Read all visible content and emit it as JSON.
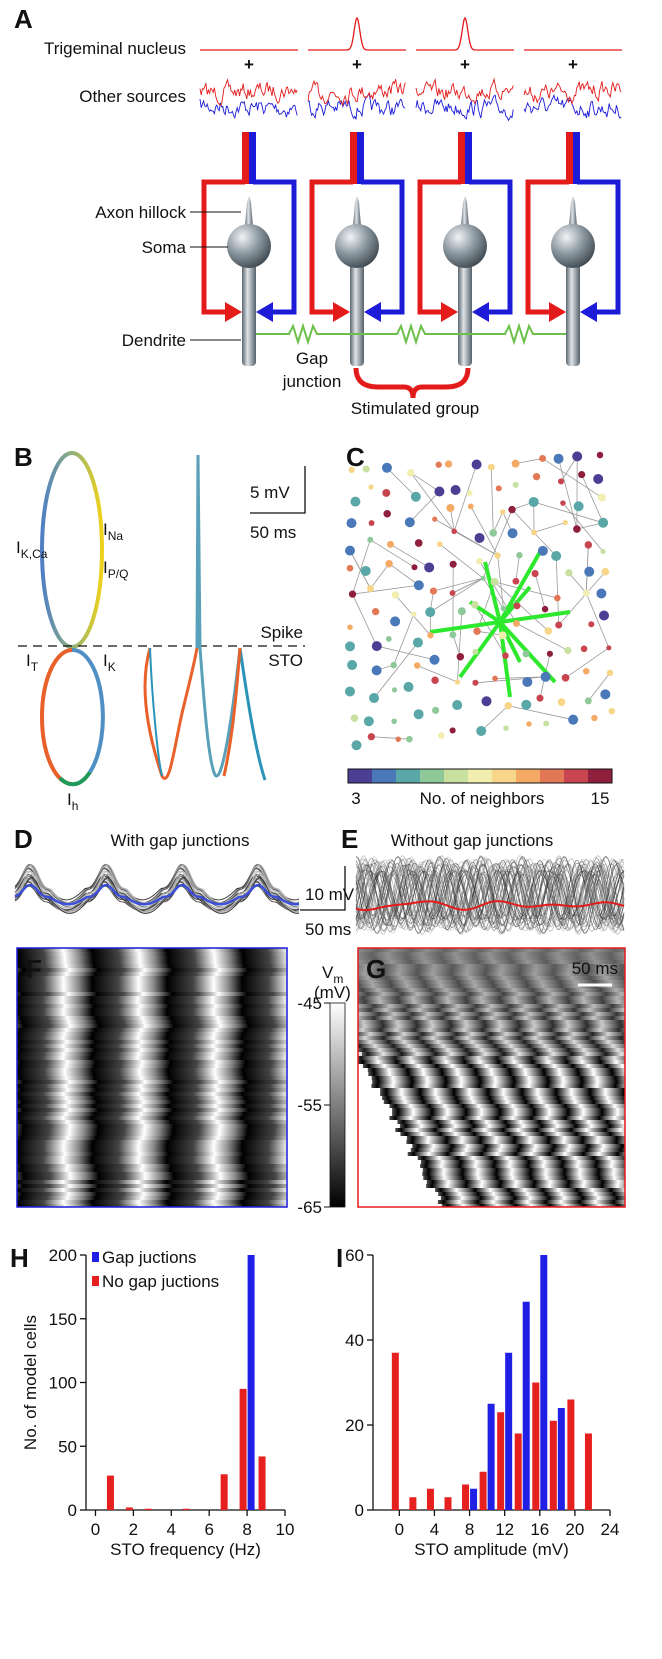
{
  "panels": {
    "A": {
      "label": "A",
      "trigeminal": "Trigeminal nucleus",
      "other": "Other sources",
      "plus": [
        "+",
        "+",
        "+",
        "+"
      ],
      "axon_hillock": "Axon hillock",
      "soma": "Soma",
      "dendrite": "Dendrite",
      "gap_junction": [
        "Gap",
        "junction"
      ],
      "stimulated_group": "Stimulated group"
    },
    "B": {
      "label": "B",
      "currents": [
        {
          "main": "I",
          "sub": "K,Ca"
        },
        {
          "main": "I",
          "sub": "Na"
        },
        {
          "main": "I",
          "sub": "P/Q"
        },
        {
          "main": "I",
          "sub": "T"
        },
        {
          "main": "I",
          "sub": "K"
        },
        {
          "main": "I",
          "sub": "h"
        }
      ],
      "scale_v": "5 mV",
      "scale_t": "50 ms",
      "spike": "Spike",
      "sto": "STO"
    },
    "C": {
      "label": "C",
      "colorbar_min": 3,
      "colorbar_max": 15,
      "colorbar_label": "No. of neighbors"
    },
    "D": {
      "label": "D",
      "title": "With gap junctions",
      "scale_v": "10 mV",
      "scale_t": "50 ms"
    },
    "E": {
      "label": "E",
      "title": "Without gap junctions"
    },
    "F": {
      "label": "F",
      "colorbar_title": {
        "main": "V",
        "sub": "m"
      },
      "colorbar_unit": "(mV)",
      "colorbar_ticks": [
        -45,
        -55,
        -65
      ]
    },
    "G": {
      "label": "G",
      "scale_t": "50 ms"
    }
  },
  "chart_data": [
    {
      "type": "bar",
      "panel": "H",
      "x": [
        1,
        2,
        3,
        5,
        7,
        8,
        9
      ],
      "xlabel": "STO frequency (Hz)",
      "ylabel": "No. of model cells",
      "series": [
        {
          "name": "Gap juctions",
          "color": "#1f1fe6",
          "values": [
            null,
            null,
            null,
            null,
            null,
            200,
            null
          ]
        },
        {
          "name": "No gap juctions",
          "color": "#e61f1f",
          "values": [
            27,
            2,
            1,
            1,
            28,
            95,
            42
          ]
        }
      ],
      "xlim": [
        -0.5,
        10
      ],
      "xticks": [
        0,
        2,
        4,
        6,
        8,
        10
      ],
      "ylim": [
        0,
        200
      ],
      "yticks": [
        0,
        50,
        100,
        150,
        200
      ],
      "legend": "upper left"
    },
    {
      "type": "bar",
      "panel": "I",
      "x": [
        0,
        2,
        4,
        6,
        8,
        10,
        12,
        14,
        16,
        18,
        20,
        22
      ],
      "xlabel": "STO amplitude (mV)",
      "series": [
        {
          "color": "#1f1fe6",
          "values": [
            null,
            null,
            null,
            null,
            5,
            25,
            37,
            49,
            60,
            24,
            null,
            null
          ]
        },
        {
          "color": "#e61f1f",
          "values": [
            37,
            3,
            5,
            3,
            6,
            9,
            23,
            18,
            30,
            21,
            26,
            18
          ]
        }
      ],
      "xlim": [
        -3,
        24
      ],
      "xticks": [
        0,
        4,
        8,
        12,
        16,
        20,
        24
      ],
      "ylim": [
        0,
        60
      ],
      "yticks": [
        0,
        20,
        40,
        60
      ]
    }
  ]
}
